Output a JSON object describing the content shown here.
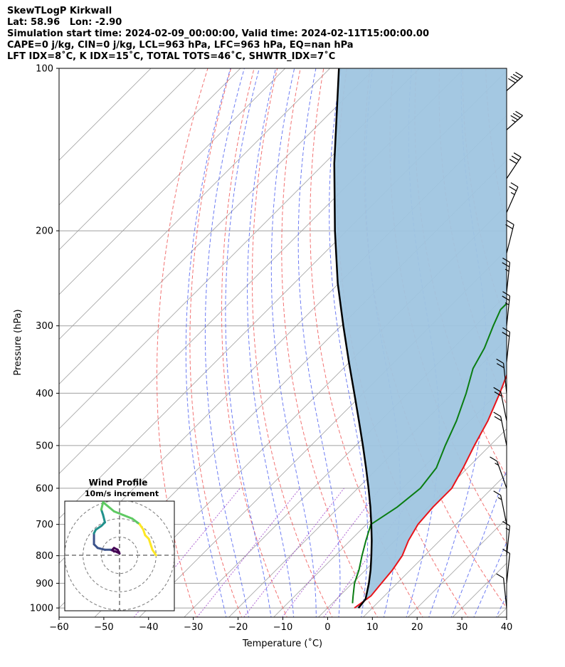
{
  "header": {
    "line1": "SkewTLogP Kirkwall",
    "line2": "Lat: 58.96   Lon: -2.90",
    "line3": "Simulation start time: 2024-02-09_00:00:00, Valid time: 2024-02-11T15:00:00.00",
    "line4": "CAPE=0 j/kg, CIN=0 j/kg, LCL=963 hPa, LFC=963 hPa, EQ=nan hPa",
    "line5": "LFT IDX=8˚C, K IDX=15˚C, TOTAL TOTS=46˚C, SHWTR_IDX=7˚C"
  },
  "chart_data": [
    {
      "type": "line",
      "title": "",
      "xlabel": "Temperature (˚C)",
      "ylabel": "Pressure (hPa)",
      "xlim": [
        -60,
        40
      ],
      "ylim": [
        1040,
        100
      ],
      "y_scale": "log",
      "x_ticks": [
        "−60",
        "−50",
        "−40",
        "−30",
        "−20",
        "−10",
        "0",
        "10",
        "20",
        "30",
        "40"
      ],
      "y_ticks": [
        "100",
        "200",
        "300",
        "400",
        "500",
        "600",
        "700",
        "800",
        "900",
        "1000"
      ],
      "grid": true,
      "colors": {
        "temperature": "#e8141a",
        "dewpoint": "#0a7d12",
        "parcel": "#000000",
        "cape_fill": "#9fc5e0",
        "dry_adiabats": "#f05a5a",
        "moist_adiabats": "#4a5cf0",
        "mixing_ratio": "#9b3fc8",
        "isotherms": "#a0a0a0"
      },
      "series": [
        {
          "key": "temperature",
          "values": [
            [
              1000,
              6
            ],
            [
              950,
              7
            ],
            [
              900,
              6.5
            ],
            [
              850,
              6
            ],
            [
              800,
              5
            ],
            [
              750,
              3
            ],
            [
              700,
              1.5
            ],
            [
              650,
              1
            ],
            [
              600,
              1
            ],
            [
              550,
              -1
            ],
            [
              500,
              -3.5
            ],
            [
              450,
              -6
            ],
            [
              400,
              -9.5
            ],
            [
              370,
              -12
            ],
            [
              330,
              -16
            ],
            [
              300,
              -18
            ],
            [
              280,
              -19
            ],
            [
              250,
              -21
            ],
            [
              230,
              -20
            ],
            [
              200,
              -17.5
            ],
            [
              185,
              -16.5
            ],
            [
              170,
              -15
            ],
            [
              150,
              -12
            ],
            [
              135,
              -11
            ],
            [
              120,
              -8
            ],
            [
              110,
              -6
            ],
            [
              100,
              -4
            ]
          ]
        },
        {
          "key": "dewpoint",
          "values": [
            [
              980,
              4.5
            ],
            [
              950,
              3
            ],
            [
              900,
              0.5
            ],
            [
              850,
              -1.5
            ],
            [
              800,
              -4
            ],
            [
              750,
              -6.5
            ],
            [
              700,
              -9
            ],
            [
              650,
              -7
            ],
            [
              600,
              -6
            ],
            [
              550,
              -7
            ],
            [
              500,
              -10
            ],
            [
              450,
              -13
            ],
            [
              400,
              -17
            ],
            [
              360,
              -21
            ],
            [
              330,
              -23
            ],
            [
              300,
              -26
            ],
            [
              280,
              -28
            ],
            [
              250,
              -28
            ],
            [
              230,
              -30
            ],
            [
              200,
              -32
            ],
            [
              190,
              -33
            ],
            [
              180,
              -33
            ],
            [
              170,
              -32
            ],
            [
              160,
              -30
            ],
            [
              150,
              -27
            ],
            [
              140,
              -24
            ],
            [
              130,
              -22
            ],
            [
              120,
              -19
            ],
            [
              110,
              -16
            ],
            [
              100,
              -13
            ]
          ]
        },
        {
          "key": "parcel",
          "values": [
            [
              1000,
              6.9
            ],
            [
              963,
              6.5
            ],
            [
              900,
              3.7
            ],
            [
              850,
              1.1
            ],
            [
              800,
              -1.9
            ],
            [
              750,
              -5.2
            ],
            [
              700,
              -8.9
            ],
            [
              650,
              -13
            ],
            [
              600,
              -17.6
            ],
            [
              550,
              -22.7
            ],
            [
              500,
              -28.4
            ],
            [
              450,
              -34.8
            ],
            [
              400,
              -42
            ],
            [
              350,
              -50.2
            ],
            [
              300,
              -59.5
            ],
            [
              250,
              -70.3
            ],
            [
              200,
              -82.6
            ],
            [
              150,
              -97.8
            ],
            [
              100,
              -118
            ]
          ]
        }
      ],
      "wind_barbs": [
        {
          "p": 110,
          "u": -5,
          "v": 0,
          "speed_kt": 40
        },
        {
          "p": 130,
          "u": -5,
          "v": 0,
          "speed_kt": 35
        },
        {
          "p": 160,
          "u": -4,
          "v": -2,
          "speed_kt": 30
        },
        {
          "p": 185,
          "u": -3,
          "v": -3,
          "speed_kt": 25
        },
        {
          "p": 220,
          "u": -2,
          "v": -4,
          "speed_kt": 20
        },
        {
          "p": 260,
          "u": -1,
          "v": -5,
          "speed_kt": 25
        },
        {
          "p": 300,
          "u": -1,
          "v": -5,
          "speed_kt": 25
        },
        {
          "p": 350,
          "u": -1,
          "v": -5,
          "speed_kt": 20
        },
        {
          "p": 400,
          "u": 1,
          "v": -5,
          "speed_kt": 20
        },
        {
          "p": 450,
          "u": 2,
          "v": -5,
          "speed_kt": 20
        },
        {
          "p": 500,
          "u": 2,
          "v": -5,
          "speed_kt": 20
        },
        {
          "p": 600,
          "u": 3,
          "v": -4,
          "speed_kt": 15
        },
        {
          "p": 700,
          "u": 2,
          "v": -5,
          "speed_kt": 15
        },
        {
          "p": 800,
          "u": -1,
          "v": -5,
          "speed_kt": 15
        },
        {
          "p": 900,
          "u": -1,
          "v": -5,
          "speed_kt": 10
        },
        {
          "p": 1000,
          "u": 1,
          "v": -5,
          "speed_kt": 10
        }
      ]
    },
    {
      "type": "scatter",
      "title": "Wind Profile",
      "subtitle": "10m/s increment",
      "ring_speeds_ms": [
        10,
        20,
        30
      ],
      "xlim": [
        -30,
        30
      ],
      "ylim": [
        -30,
        30
      ],
      "hodograph": [
        [
          -3,
          2
        ],
        [
          -4,
          3
        ],
        [
          -3,
          4
        ],
        [
          -1,
          3
        ],
        [
          0,
          1
        ],
        [
          -2,
          2
        ],
        [
          -5,
          3
        ],
        [
          -8,
          3
        ],
        [
          -12,
          4
        ],
        [
          -14,
          6
        ],
        [
          -14,
          9
        ],
        [
          -14,
          12
        ],
        [
          -13,
          14
        ],
        [
          -10,
          16
        ],
        [
          -8,
          18
        ],
        [
          -9,
          22
        ],
        [
          -10,
          25
        ],
        [
          -9,
          29
        ],
        [
          -3,
          24
        ],
        [
          2,
          22
        ],
        [
          7,
          20
        ],
        [
          11,
          17
        ],
        [
          13,
          14
        ],
        [
          14,
          11
        ],
        [
          16,
          9
        ],
        [
          17,
          6
        ],
        [
          18,
          3
        ],
        [
          20,
          0
        ]
      ]
    }
  ]
}
